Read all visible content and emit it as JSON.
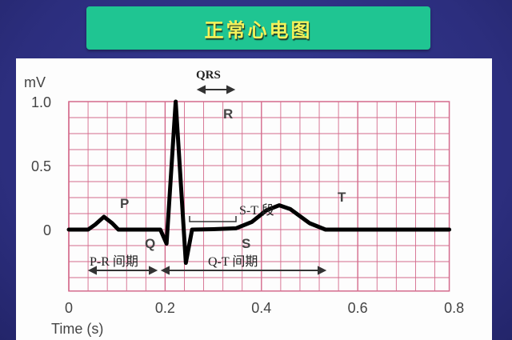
{
  "slide": {
    "title": "正常心电图"
  },
  "chart_data": {
    "type": "line",
    "title": "",
    "xlabel": "Time (s)",
    "ylabel": "mV",
    "xlim": [
      0,
      0.8
    ],
    "ylim": [
      -0.48,
      1.0
    ],
    "x_ticks": [
      "0",
      "0.2",
      "0.4",
      "0.6",
      "0.8"
    ],
    "x_tick_values": [
      0,
      0.2,
      0.4,
      0.6,
      0.8
    ],
    "y_ticks": [
      "0",
      "0.5",
      "1.0"
    ],
    "y_tick_values": [
      0,
      0.5,
      1.0
    ],
    "grid": true,
    "grid_color": "#d46a8c",
    "line_color": "#000000",
    "series": [
      {
        "x": [
          0,
          0.04,
          0.055,
          0.073,
          0.09,
          0.103,
          0.19,
          0.203,
          0.222,
          0.243,
          0.256,
          0.3,
          0.347,
          0.38,
          0.41,
          0.437,
          0.46,
          0.5,
          0.533,
          0.6,
          0.79
        ],
        "y": [
          0,
          0,
          0.04,
          0.1,
          0.05,
          0,
          0,
          -0.11,
          1.0,
          -0.26,
          0,
          0.003,
          0.01,
          0.06,
          0.15,
          0.19,
          0.16,
          0.05,
          0,
          0,
          0
        ]
      }
    ],
    "annotations": {
      "P": "P",
      "Q": "Q",
      "R": "R",
      "S": "S",
      "T": "T",
      "QRS": "QRS",
      "ST_segment": "S-T 段",
      "PR_interval": "P-R 间期",
      "QT_interval": "Q-T 间期"
    }
  }
}
